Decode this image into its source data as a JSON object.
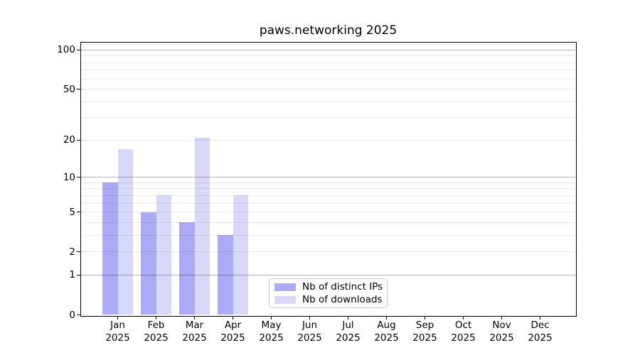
{
  "chart_data": {
    "type": "bar",
    "title": "paws.networking 2025",
    "categories": [
      "Jan 2025",
      "Feb 2025",
      "Mar 2025",
      "Apr 2025",
      "May 2025",
      "Jun 2025",
      "Jul 2025",
      "Aug 2025",
      "Sep 2025",
      "Oct 2025",
      "Nov 2025",
      "Dec 2025"
    ],
    "series": [
      {
        "name": "Nb of distinct IPs",
        "color": "#aaaaf6",
        "values": [
          9,
          5,
          4,
          3,
          null,
          null,
          null,
          null,
          null,
          null,
          null,
          null
        ]
      },
      {
        "name": "Nb of downloads",
        "color": "#d8d8f8",
        "values": [
          17,
          7,
          21,
          7,
          null,
          null,
          null,
          null,
          null,
          null,
          null,
          null
        ]
      }
    ],
    "xlabel": "",
    "ylabel": "",
    "yscale": "log10(value+1)",
    "ylim": [
      0,
      115
    ],
    "yticks": [
      0,
      1,
      2,
      5,
      10,
      20,
      50,
      100
    ],
    "major_gridlines": [
      1,
      10,
      100
    ],
    "minor_gridlines": [
      2,
      3,
      4,
      5,
      6,
      7,
      8,
      9,
      20,
      30,
      40,
      50,
      60,
      70,
      80,
      90,
      110
    ],
    "grid": true,
    "legend_position": "lower center",
    "background_color": "#ffffff",
    "axis_color": "#000000"
  }
}
